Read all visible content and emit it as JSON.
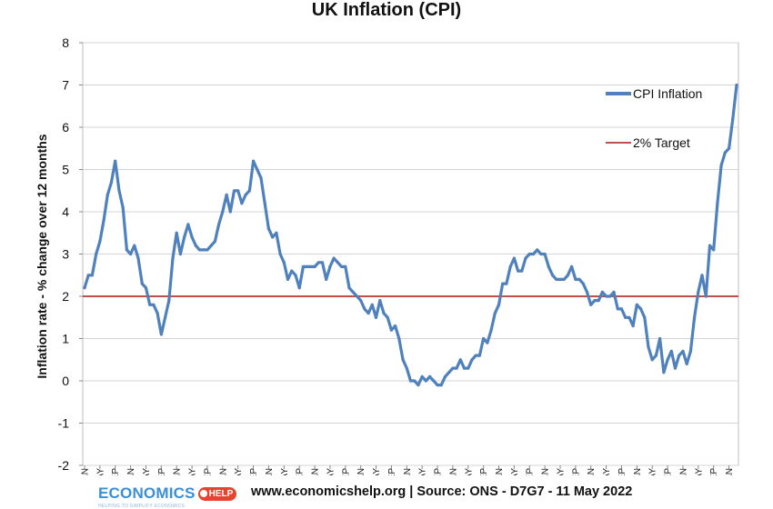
{
  "chart_data": {
    "type": "line",
    "title": "UK Inflation (CPI)",
    "ylabel": "Inflation rate  - % change over 12 months",
    "xlabel": "",
    "ylim": [
      -2,
      8
    ],
    "yticks": [
      "8",
      "7",
      "6",
      "5",
      "4",
      "3",
      "2",
      "1",
      "0",
      "-1",
      "-2"
    ],
    "grid": true,
    "legend_position": "top-right",
    "xtick_labels": [
      "2008 JAN",
      "2008 MAY",
      "2008 SEP",
      "2009 JAN",
      "2009 MAY",
      "2009 SEP",
      "2010 JAN",
      "2010 MAY",
      "2010 SEP",
      "2011 JAN",
      "2011 MAY",
      "2011 SEP",
      "2012 JAN",
      "2012 MAY",
      "2012 SEP",
      "2013 JAN",
      "2013 MAY",
      "2013 SEP",
      "2014 JAN",
      "2014 MAY",
      "2014 SEP",
      "2015 JAN",
      "2015 MAY",
      "2015 SEP",
      "2016 JAN",
      "2016 MAY",
      "2016 SEP",
      "2017 JAN",
      "2017 MAY",
      "2017 SEP",
      "2018 JAN",
      "2018 MAY",
      "2018 SEP",
      "2019 JAN",
      "2019 MAY",
      "2019 SEP",
      "2020 JAN",
      "2020 MAY",
      "2020 SEP",
      "2021 JAN",
      "2021 MAY",
      "2021 SEP",
      "2022 JAN"
    ],
    "series": [
      {
        "name": "CPI Inflation",
        "color": "#4f81bd",
        "start": "2008-01",
        "values": [
          2.2,
          2.5,
          2.5,
          3.0,
          3.3,
          3.8,
          4.4,
          4.7,
          5.2,
          4.5,
          4.1,
          3.1,
          3.0,
          3.2,
          2.9,
          2.3,
          2.2,
          1.8,
          1.8,
          1.6,
          1.1,
          1.5,
          1.9,
          2.9,
          3.5,
          3.0,
          3.4,
          3.7,
          3.4,
          3.2,
          3.1,
          3.1,
          3.1,
          3.2,
          3.3,
          3.7,
          4.0,
          4.4,
          4.0,
          4.5,
          4.5,
          4.2,
          4.4,
          4.5,
          5.2,
          5.0,
          4.8,
          4.2,
          3.6,
          3.4,
          3.5,
          3.0,
          2.8,
          2.4,
          2.6,
          2.5,
          2.2,
          2.7,
          2.7,
          2.7,
          2.7,
          2.8,
          2.8,
          2.4,
          2.7,
          2.9,
          2.8,
          2.7,
          2.7,
          2.2,
          2.1,
          2.0,
          1.9,
          1.7,
          1.6,
          1.8,
          1.5,
          1.9,
          1.6,
          1.5,
          1.2,
          1.3,
          1.0,
          0.5,
          0.3,
          0.0,
          0.0,
          -0.1,
          0.1,
          0.0,
          0.1,
          0.0,
          -0.1,
          -0.1,
          0.1,
          0.2,
          0.3,
          0.3,
          0.5,
          0.3,
          0.3,
          0.5,
          0.6,
          0.6,
          1.0,
          0.9,
          1.2,
          1.6,
          1.8,
          2.3,
          2.3,
          2.7,
          2.9,
          2.6,
          2.6,
          2.9,
          3.0,
          3.0,
          3.1,
          3.0,
          3.0,
          2.7,
          2.5,
          2.4,
          2.4,
          2.4,
          2.5,
          2.7,
          2.4,
          2.4,
          2.3,
          2.1,
          1.8,
          1.9,
          1.9,
          2.1,
          2.0,
          2.0,
          2.1,
          1.7,
          1.7,
          1.5,
          1.5,
          1.3,
          1.8,
          1.7,
          1.5,
          0.8,
          0.5,
          0.6,
          1.0,
          0.2,
          0.5,
          0.7,
          0.3,
          0.6,
          0.7,
          0.4,
          0.7,
          1.5,
          2.1,
          2.5,
          2.0,
          3.2,
          3.1,
          4.2,
          5.1,
          5.4,
          5.5,
          6.2,
          7.0
        ]
      },
      {
        "name": "2% Target",
        "color": "#c0504d",
        "value": 2
      }
    ]
  },
  "footer": {
    "logo_word": "ECONOMICS",
    "logo_badge": "HELP",
    "logo_tagline": "HELPING TO SIMPLIFY ECONOMICS",
    "source": "www.economicshelp.org | Source: ONS - D7G7 - 11 May 2022"
  }
}
